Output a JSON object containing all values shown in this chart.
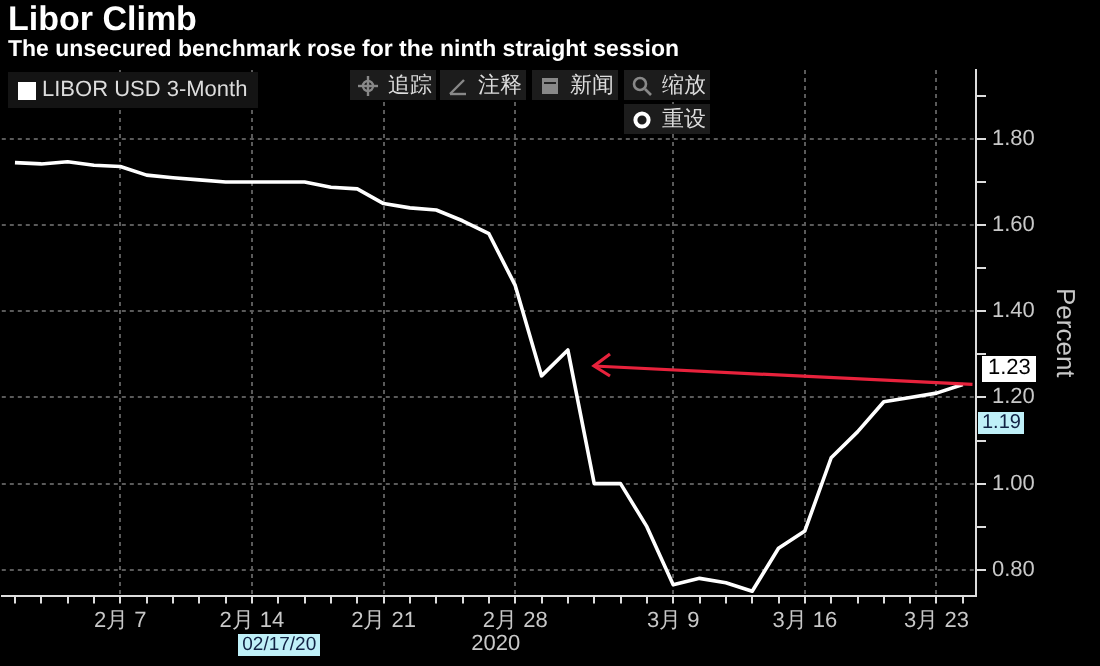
{
  "chart_data": {
    "type": "line",
    "title": "Libor Climb",
    "subtitle": "The unsecured benchmark rose for the ninth straight session",
    "ylabel": "Percent",
    "categories": [
      null,
      null,
      null,
      null,
      "2月 7",
      null,
      null,
      null,
      null,
      "2月 14",
      null,
      null,
      null,
      null,
      "2月 21",
      null,
      null,
      null,
      null,
      "2月 28",
      null,
      null,
      null,
      null,
      null,
      "3月 9",
      null,
      null,
      null,
      null,
      "3月 16",
      null,
      null,
      null,
      null,
      "3月 23",
      null
    ],
    "series": [
      {
        "name": "LIBOR USD 3-Month",
        "color": "#ffffff",
        "values": [
          1.745,
          1.742,
          1.747,
          1.739,
          1.736,
          1.716,
          1.71,
          1.705,
          1.7,
          1.7,
          1.7,
          1.7,
          1.688,
          1.684,
          1.65,
          1.64,
          1.635,
          1.61,
          1.58,
          1.46,
          1.25,
          1.31,
          1.0,
          1.0,
          0.9,
          0.765,
          0.78,
          0.77,
          0.75,
          0.85,
          0.89,
          1.06,
          1.12,
          1.19,
          1.2,
          1.21,
          1.23
        ]
      }
    ],
    "ylim": [
      0.74,
      1.96
    ],
    "yticks": [
      {
        "value": 0.8,
        "label": "0.80"
      },
      {
        "value": 0.9,
        "label": null
      },
      {
        "value": 1.0,
        "label": "1.00"
      },
      {
        "value": 1.1,
        "label": null
      },
      {
        "value": 1.2,
        "label": "1.20"
      },
      {
        "value": 1.3,
        "label": null
      },
      {
        "value": 1.4,
        "label": "1.40"
      },
      {
        "value": 1.5,
        "label": null
      },
      {
        "value": 1.6,
        "label": "1.60"
      },
      {
        "value": 1.7,
        "label": null
      },
      {
        "value": 1.8,
        "label": "1.80"
      },
      {
        "value": 1.9,
        "label": null
      }
    ],
    "grid": true,
    "legend": "top left",
    "marker": "none",
    "line_style": "solid",
    "annotations": [
      "2020",
      "02/17/20",
      "1.23",
      "1.19",
      "追踪",
      "注释",
      "新闻",
      "缩放",
      "重设"
    ]
  }
}
